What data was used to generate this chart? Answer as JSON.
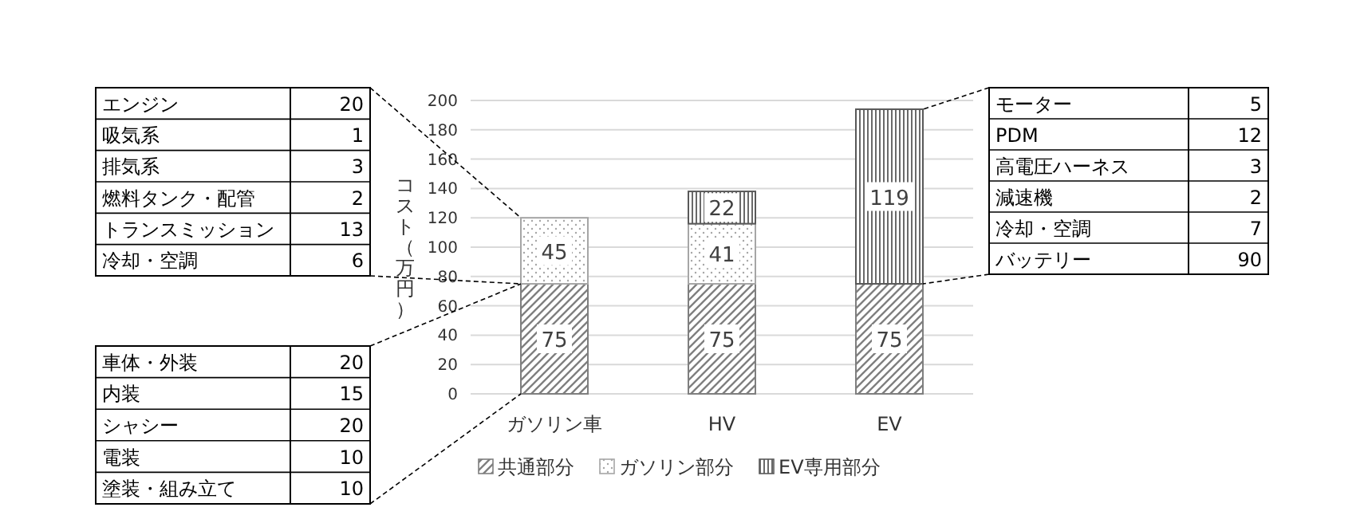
{
  "chart_data": [
    {
      "type": "bar",
      "stacked": true,
      "ylabel": "コスト（万円）",
      "categories": [
        "ガソリン車",
        "HV",
        "EV"
      ],
      "series": [
        {
          "name": "共通部分",
          "color": "#7f7f7f",
          "values": [
            75,
            75,
            75
          ]
        },
        {
          "name": "ガソリン部分",
          "color": "#a6a6a6",
          "values": [
            45,
            41,
            null
          ]
        },
        {
          "name": "EV専用部分",
          "color": "#595959",
          "values": [
            null,
            22,
            119
          ]
        }
      ],
      "ylim": [
        0,
        200
      ],
      "yticks": [
        0,
        20,
        40,
        60,
        80,
        100,
        120,
        140,
        160,
        180,
        200
      ],
      "grid": "y",
      "legend": "bottom",
      "data_labels": true
    },
    {
      "type": "other",
      "categories": [
        "エンジン",
        "吸気系",
        "排気系",
        "燃料タンク・配管",
        "トランスミッション",
        "冷却・空調"
      ],
      "values": [
        20,
        1,
        3,
        2,
        13,
        6
      ],
      "data_labels": true
    },
    {
      "type": "other",
      "categories": [
        "車体・外装",
        "内装",
        "シャシー",
        "電装",
        "塗装・組み立て"
      ],
      "values": [
        20,
        15,
        20,
        10,
        10
      ],
      "data_labels": true
    },
    {
      "type": "other",
      "categories": [
        "モーター",
        "PDM",
        "高電圧ハーネス",
        "減速機",
        "冷却・空調",
        "バッテリー"
      ],
      "values": [
        5,
        12,
        3,
        2,
        7,
        90
      ],
      "data_labels": true
    }
  ]
}
